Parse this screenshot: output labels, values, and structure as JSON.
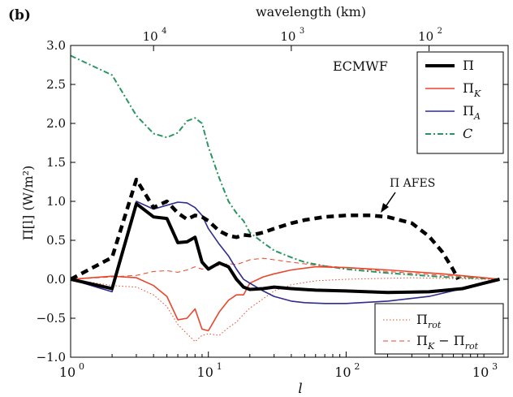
{
  "chart_data": {
    "type": "line",
    "panel_label": "(b)",
    "xlabel": "l",
    "ylabel": "Π[l] (W/m²)",
    "top_axis_label": "wavelength (km)",
    "x_scale": "log",
    "xlim": [
      1,
      1500
    ],
    "ylim": [
      -1.0,
      3.0
    ],
    "grid": false,
    "y_ticks": [
      -1.0,
      -0.5,
      0.0,
      0.5,
      1.0,
      1.5,
      2.0,
      2.5,
      3.0
    ],
    "y_tick_labels": [
      "−1.0",
      "−0.5",
      "0.0",
      "0.5",
      "1.0",
      "1.5",
      "2.0",
      "2.5",
      "3.0"
    ],
    "x_ticks": [
      1,
      10,
      100,
      1000
    ],
    "x_tick_labels": [
      {
        "base": "10",
        "exp": "0"
      },
      {
        "base": "10",
        "exp": "1"
      },
      {
        "base": "10",
        "exp": "2"
      },
      {
        "base": "10",
        "exp": "3"
      }
    ],
    "top_ticks_l": [
      4,
      40,
      400
    ],
    "top_tick_labels": [
      {
        "base": "10",
        "exp": "4"
      },
      {
        "base": "10",
        "exp": "3"
      },
      {
        "base": "10",
        "exp": "2"
      }
    ],
    "annotations": {
      "model_label": "ECMWF",
      "afes_label": "Π AFES"
    },
    "legend_upper": {
      "placement": "top-right",
      "entries": [
        {
          "label": "Π",
          "series": "Pi"
        },
        {
          "label": "ΠK",
          "series": "PiK"
        },
        {
          "label": "ΠA",
          "series": "PiA"
        },
        {
          "label": "C",
          "series": "C"
        }
      ]
    },
    "legend_lower": {
      "placement": "bottom-right",
      "entries": [
        {
          "label": "Πrot",
          "series": "PiRot"
        },
        {
          "label": "ΠK − Πrot",
          "series": "PiKminusRot"
        }
      ]
    },
    "series": [
      {
        "id": "Pi",
        "name": "Π",
        "color": "#000000",
        "style": "solid-thick",
        "points": [
          [
            1,
            0.0
          ],
          [
            2,
            -0.12
          ],
          [
            3,
            0.97
          ],
          [
            4,
            0.8
          ],
          [
            5,
            0.78
          ],
          [
            6,
            0.47
          ],
          [
            7,
            0.48
          ],
          [
            8,
            0.54
          ],
          [
            9,
            0.22
          ],
          [
            10,
            0.13
          ],
          [
            12,
            0.21
          ],
          [
            14,
            0.16
          ],
          [
            16,
            0.0
          ],
          [
            18,
            -0.1
          ],
          [
            20,
            -0.13
          ],
          [
            25,
            -0.12
          ],
          [
            30,
            -0.1
          ],
          [
            35,
            -0.11
          ],
          [
            40,
            -0.12
          ],
          [
            60,
            -0.14
          ],
          [
            100,
            -0.15
          ],
          [
            200,
            -0.17
          ],
          [
            400,
            -0.16
          ],
          [
            700,
            -0.12
          ],
          [
            1000,
            -0.05
          ],
          [
            1300,
            0.0
          ]
        ]
      },
      {
        "id": "PiK",
        "name": "ΠK",
        "color": "#e8472c",
        "style": "solid",
        "points": [
          [
            1,
            0.0
          ],
          [
            2,
            0.04
          ],
          [
            3,
            0.02
          ],
          [
            4,
            -0.08
          ],
          [
            5,
            -0.22
          ],
          [
            6,
            -0.52
          ],
          [
            7,
            -0.5
          ],
          [
            8,
            -0.38
          ],
          [
            9,
            -0.64
          ],
          [
            10,
            -0.66
          ],
          [
            12,
            -0.42
          ],
          [
            14,
            -0.27
          ],
          [
            16,
            -0.2
          ],
          [
            18,
            -0.2
          ],
          [
            20,
            -0.05
          ],
          [
            25,
            0.03
          ],
          [
            30,
            0.07
          ],
          [
            40,
            0.12
          ],
          [
            60,
            0.16
          ],
          [
            100,
            0.15
          ],
          [
            200,
            0.12
          ],
          [
            500,
            0.07
          ],
          [
            1000,
            0.02
          ],
          [
            1300,
            0.0
          ]
        ]
      },
      {
        "id": "PiA",
        "name": "ΠA",
        "color": "#2f2c8c",
        "style": "solid",
        "points": [
          [
            1,
            0.0
          ],
          [
            2,
            -0.16
          ],
          [
            3,
            1.0
          ],
          [
            4,
            0.9
          ],
          [
            5,
            0.95
          ],
          [
            6,
            0.99
          ],
          [
            7,
            0.98
          ],
          [
            8,
            0.92
          ],
          [
            9,
            0.82
          ],
          [
            10,
            0.65
          ],
          [
            12,
            0.45
          ],
          [
            14,
            0.3
          ],
          [
            16,
            0.13
          ],
          [
            18,
            0.0
          ],
          [
            20,
            -0.05
          ],
          [
            25,
            -0.15
          ],
          [
            30,
            -0.22
          ],
          [
            40,
            -0.28
          ],
          [
            50,
            -0.3
          ],
          [
            70,
            -0.31
          ],
          [
            100,
            -0.31
          ],
          [
            200,
            -0.28
          ],
          [
            400,
            -0.22
          ],
          [
            700,
            -0.12
          ],
          [
            1000,
            -0.04
          ],
          [
            1300,
            0.0
          ]
        ]
      },
      {
        "id": "C",
        "name": "C",
        "color": "#2a9560",
        "style": "dashdot",
        "points": [
          [
            1,
            2.87
          ],
          [
            2,
            2.62
          ],
          [
            3,
            2.1
          ],
          [
            4,
            1.87
          ],
          [
            5,
            1.82
          ],
          [
            6,
            1.88
          ],
          [
            7,
            2.03
          ],
          [
            8,
            2.07
          ],
          [
            9,
            2.0
          ],
          [
            10,
            1.7
          ],
          [
            12,
            1.3
          ],
          [
            14,
            1.0
          ],
          [
            16,
            0.85
          ],
          [
            18,
            0.75
          ],
          [
            20,
            0.6
          ],
          [
            25,
            0.47
          ],
          [
            30,
            0.37
          ],
          [
            40,
            0.28
          ],
          [
            50,
            0.22
          ],
          [
            70,
            0.17
          ],
          [
            100,
            0.13
          ],
          [
            200,
            0.08
          ],
          [
            500,
            0.03
          ],
          [
            1000,
            0.01
          ],
          [
            1300,
            0.0
          ]
        ]
      },
      {
        "id": "AFES",
        "name": "Π AFES",
        "color": "#000000",
        "style": "dashed-thick",
        "points": [
          [
            1,
            0.0
          ],
          [
            2,
            0.28
          ],
          [
            3,
            1.28
          ],
          [
            4,
            0.92
          ],
          [
            5,
            1.0
          ],
          [
            6,
            0.85
          ],
          [
            7,
            0.77
          ],
          [
            8,
            0.82
          ],
          [
            9,
            0.8
          ],
          [
            10,
            0.75
          ],
          [
            12,
            0.62
          ],
          [
            14,
            0.56
          ],
          [
            16,
            0.54
          ],
          [
            18,
            0.57
          ],
          [
            20,
            0.56
          ],
          [
            25,
            0.6
          ],
          [
            30,
            0.65
          ],
          [
            40,
            0.72
          ],
          [
            50,
            0.76
          ],
          [
            70,
            0.8
          ],
          [
            100,
            0.82
          ],
          [
            150,
            0.82
          ],
          [
            200,
            0.8
          ],
          [
            300,
            0.72
          ],
          [
            400,
            0.55
          ],
          [
            500,
            0.35
          ],
          [
            600,
            0.12
          ],
          [
            650,
            0.0
          ]
        ]
      },
      {
        "id": "PiRot",
        "name": "Πrot",
        "color": "#e8472c",
        "style": "dotted",
        "points": [
          [
            1,
            0.0
          ],
          [
            2,
            -0.08
          ],
          [
            3,
            -0.1
          ],
          [
            4,
            -0.2
          ],
          [
            5,
            -0.35
          ],
          [
            6,
            -0.58
          ],
          [
            7,
            -0.7
          ],
          [
            8,
            -0.8
          ],
          [
            9,
            -0.72
          ],
          [
            10,
            -0.7
          ],
          [
            12,
            -0.72
          ],
          [
            14,
            -0.62
          ],
          [
            16,
            -0.55
          ],
          [
            18,
            -0.45
          ],
          [
            20,
            -0.37
          ],
          [
            25,
            -0.25
          ],
          [
            30,
            -0.15
          ],
          [
            40,
            -0.07
          ],
          [
            60,
            -0.02
          ],
          [
            100,
            0.0
          ],
          [
            300,
            0.02
          ],
          [
            1000,
            0.0
          ],
          [
            1300,
            0.0
          ]
        ]
      },
      {
        "id": "PiKminusRot",
        "name": "ΠK − Πrot",
        "color": "#e8472c",
        "style": "dashed",
        "points": [
          [
            1,
            0.0
          ],
          [
            2,
            0.03
          ],
          [
            3,
            0.05
          ],
          [
            4,
            0.1
          ],
          [
            5,
            0.11
          ],
          [
            6,
            0.09
          ],
          [
            7,
            0.12
          ],
          [
            8,
            0.16
          ],
          [
            9,
            0.13
          ],
          [
            10,
            0.15
          ],
          [
            12,
            0.18
          ],
          [
            14,
            0.2
          ],
          [
            16,
            0.19
          ],
          [
            18,
            0.22
          ],
          [
            20,
            0.25
          ],
          [
            25,
            0.27
          ],
          [
            30,
            0.25
          ],
          [
            40,
            0.22
          ],
          [
            60,
            0.18
          ],
          [
            100,
            0.15
          ],
          [
            200,
            0.1
          ],
          [
            500,
            0.05
          ],
          [
            1000,
            0.02
          ],
          [
            1300,
            0.0
          ]
        ]
      }
    ]
  }
}
